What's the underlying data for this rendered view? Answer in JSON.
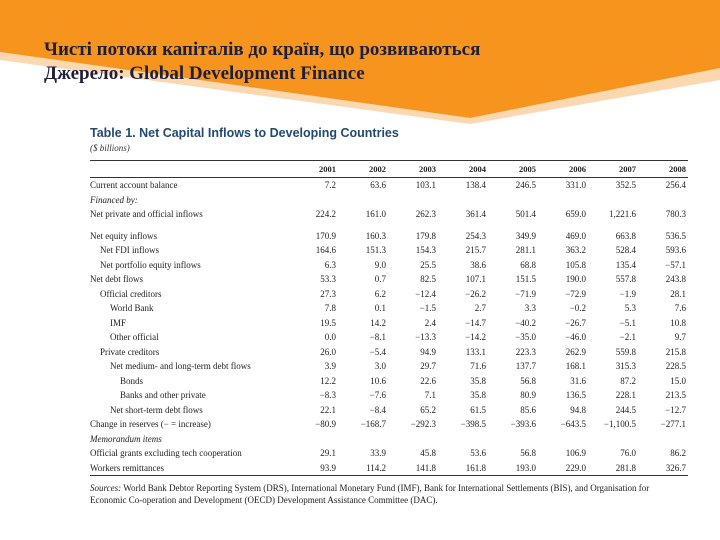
{
  "slide": {
    "title_line1": "Чисті потоки капіталів до країн, що розвиваються",
    "title_line2": "Джерело: Global Development Finance",
    "banner_color": "#f7941d"
  },
  "table": {
    "title": "Table 1. Net Capital Inflows to Developing Countries",
    "unit": "($ billions)",
    "years": [
      "2001",
      "2002",
      "2003",
      "2004",
      "2005",
      "2006",
      "2007",
      "2008"
    ],
    "rows": [
      {
        "label": "Current account balance",
        "values": [
          "7.2",
          "63.6",
          "103.1",
          "138.4",
          "246.5",
          "331.0",
          "352.5",
          "256.4"
        ]
      },
      {
        "label": "Financed by:",
        "values": [
          "",
          "",
          "",
          "",
          "",
          "",
          "",
          ""
        ]
      },
      {
        "label": "Net private and official inflows",
        "values": [
          "224.2",
          "161.0",
          "262.3",
          "361.4",
          "501.4",
          "659.0",
          "1,221.6",
          "780.3"
        ]
      },
      {
        "label": "Net equity inflows",
        "values": [
          "170.9",
          "160.3",
          "179.8",
          "254.3",
          "349.9",
          "469.0",
          "663.8",
          "536.5"
        ]
      },
      {
        "label": "Net FDI inflows",
        "values": [
          "164.6",
          "151.3",
          "154.3",
          "215.7",
          "281.1",
          "363.2",
          "528.4",
          "593.6"
        ]
      },
      {
        "label": "Net portfolio equity inflows",
        "values": [
          "6.3",
          "9.0",
          "25.5",
          "38.6",
          "68.8",
          "105.8",
          "135.4",
          "−57.1"
        ]
      },
      {
        "label": "Net debt flows",
        "values": [
          "53.3",
          "0.7",
          "82.5",
          "107.1",
          "151.5",
          "190.0",
          "557.8",
          "243.8"
        ]
      },
      {
        "label": "Official creditors",
        "values": [
          "27.3",
          "6.2",
          "−12.4",
          "−26.2",
          "−71.9",
          "−72.9",
          "−1.9",
          "28.1"
        ]
      },
      {
        "label": "World Bank",
        "values": [
          "7.8",
          "0.1",
          "−1.5",
          "2.7",
          "3.3",
          "−0.2",
          "5.3",
          "7.6"
        ]
      },
      {
        "label": "IMF",
        "values": [
          "19.5",
          "14.2",
          "2.4",
          "−14.7",
          "−40.2",
          "−26.7",
          "−5.1",
          "10.8"
        ]
      },
      {
        "label": "Other official",
        "values": [
          "0.0",
          "−8.1",
          "−13.3",
          "−14.2",
          "−35.0",
          "−46.0",
          "−2.1",
          "9.7"
        ]
      },
      {
        "label": "Private creditors",
        "values": [
          "26.0",
          "−5.4",
          "94.9",
          "133.1",
          "223.3",
          "262.9",
          "559.8",
          "215.8"
        ]
      },
      {
        "label": "Net medium- and long-term debt flows",
        "values": [
          "3.9",
          "3.0",
          "29.7",
          "71.6",
          "137.7",
          "168.1",
          "315.3",
          "228.5"
        ]
      },
      {
        "label": "Bonds",
        "values": [
          "12.2",
          "10.6",
          "22.6",
          "35.8",
          "56.8",
          "31.6",
          "87.2",
          "15.0"
        ]
      },
      {
        "label": "Banks and other private",
        "values": [
          "−8.3",
          "−7.6",
          "7.1",
          "35.8",
          "80.9",
          "136.5",
          "228.1",
          "213.5"
        ]
      },
      {
        "label": "Net short-term debt flows",
        "values": [
          "22.1",
          "−8.4",
          "65.2",
          "61.5",
          "85.6",
          "94.8",
          "244.5",
          "−12.7"
        ]
      },
      {
        "label": "Change in reserves (− = increase)",
        "values": [
          "−80.9",
          "−168.7",
          "−292.3",
          "−398.5",
          "−393.6",
          "−643.5",
          "−1,100.5",
          "−277.1"
        ]
      },
      {
        "label": "Memorandum items",
        "values": [
          "",
          "",
          "",
          "",
          "",
          "",
          "",
          ""
        ]
      },
      {
        "label": "Official grants excluding tech cooperation",
        "values": [
          "29.1",
          "33.9",
          "45.8",
          "53.6",
          "56.8",
          "106.9",
          "76.0",
          "86.2"
        ]
      },
      {
        "label": "Workers remittances",
        "values": [
          "93.9",
          "114.2",
          "141.8",
          "161.8",
          "193.0",
          "229.0",
          "281.8",
          "326.7"
        ]
      }
    ],
    "source_label": "Sources:",
    "source_text": "World Bank Debtor Reporting System (DRS), International Monetary Fund (IMF), Bank for International Settlements (BIS), and Organisation for Economic Co-operation and Development (OECD) Development Assistance Committee (DAC)."
  }
}
